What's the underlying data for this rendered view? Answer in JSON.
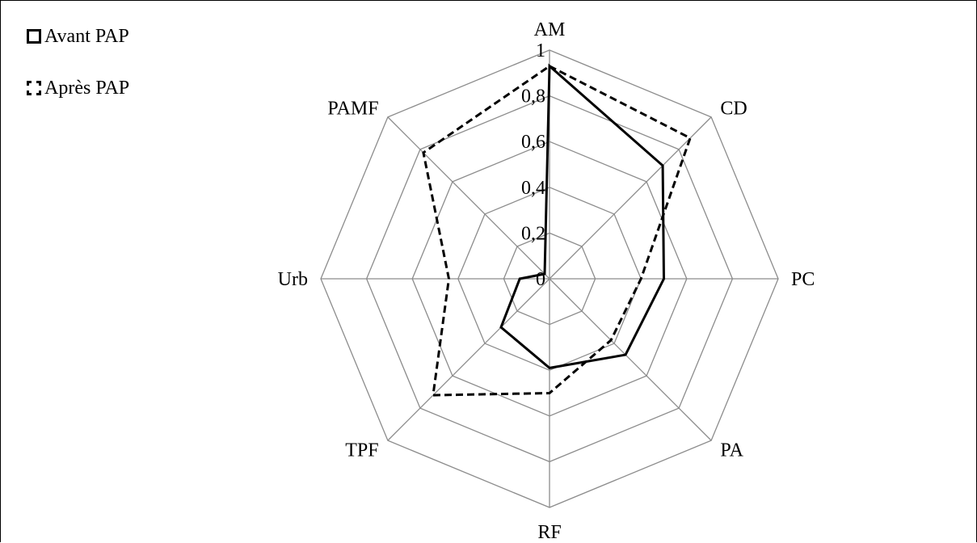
{
  "chart_data": {
    "type": "radar",
    "axes": [
      "AM",
      "CD",
      "PC",
      "PA",
      "RF",
      "TPF",
      "Urb",
      "PAMF"
    ],
    "rlim": [
      0,
      1
    ],
    "ticks": [
      "0",
      "0,2",
      "0,4",
      "0,6",
      "0,8",
      "1"
    ],
    "grid": true,
    "legend_position": "top-left",
    "series": [
      {
        "name": "Avant PAP",
        "style": "solid",
        "color": "#000000",
        "values": [
          0.93,
          0.7,
          0.5,
          0.47,
          0.39,
          0.3,
          0.13,
          0.03
        ]
      },
      {
        "name": "Après PAP",
        "style": "dashed",
        "color": "#000000",
        "values": [
          0.93,
          0.87,
          0.4,
          0.38,
          0.5,
          0.72,
          0.44,
          0.78
        ]
      }
    ]
  }
}
